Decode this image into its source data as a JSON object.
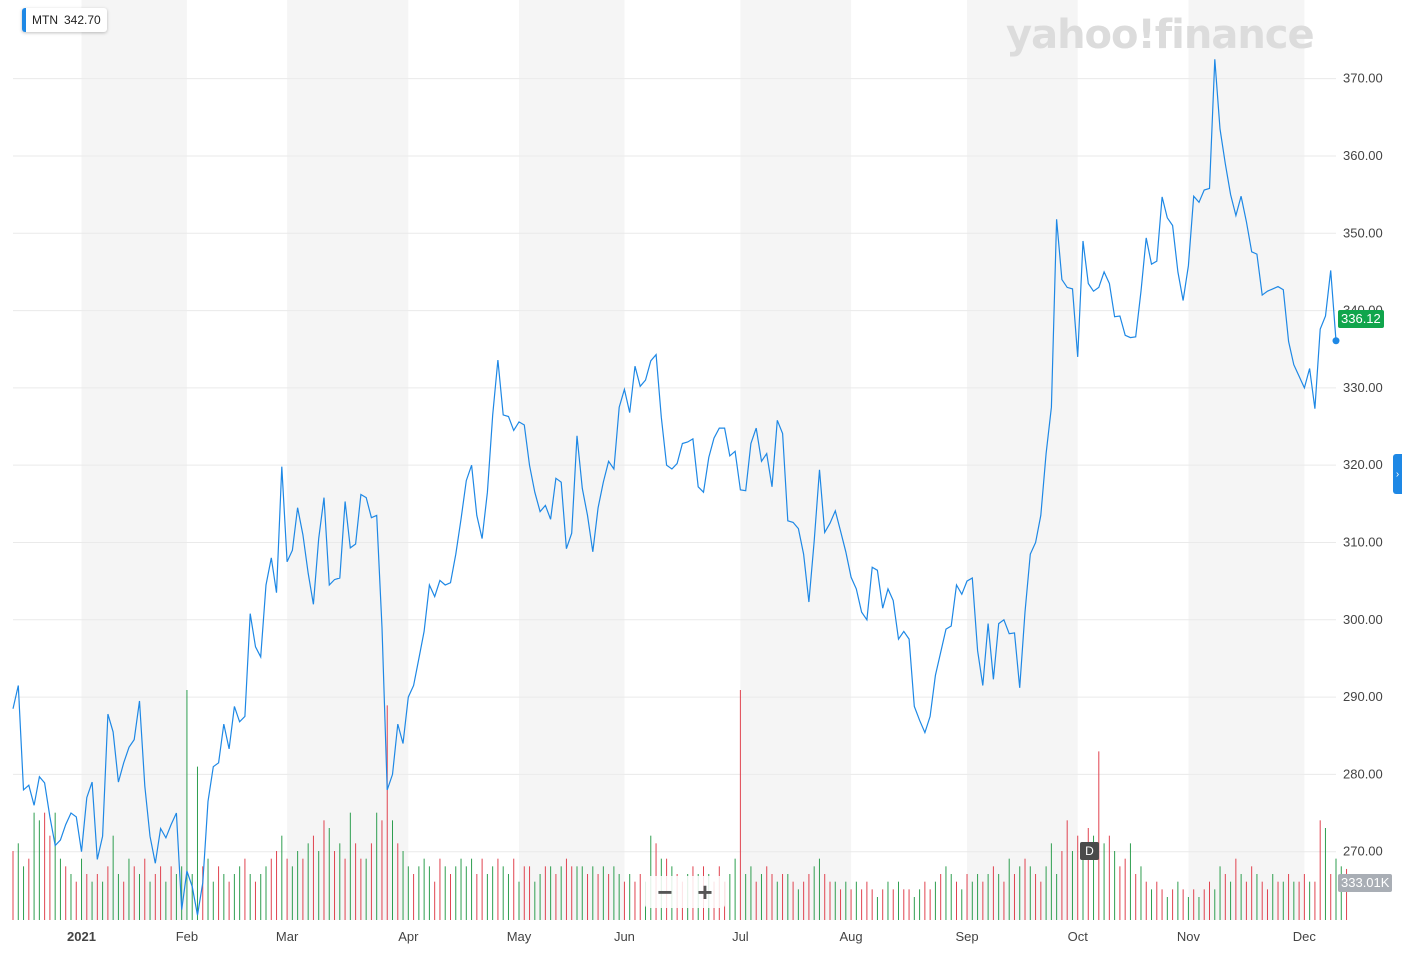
{
  "ticker": {
    "symbol": "MTN",
    "price": "342.70"
  },
  "watermark": "yahoo!finance",
  "current_price_label": "336.12",
  "volume_label": "333.01K",
  "zoom": {
    "minus": "−",
    "plus": "+"
  },
  "d_marker": "D",
  "colors": {
    "line": "#1e88e5",
    "up_volume": "#2e9e4f",
    "down_volume": "#e0434f",
    "band": "#f5f5f5",
    "price_badge": "#10a54c",
    "volume_badge": "#a9aeb5"
  },
  "chart_data": {
    "type": "line",
    "ylim": [
      260,
      375
    ],
    "yticks": [
      270,
      280,
      290,
      300,
      310,
      320,
      330,
      340,
      350,
      360,
      370
    ],
    "ytick_labels": [
      "270.00",
      "280.00",
      "290.00",
      "300.00",
      "310.00",
      "320.00",
      "330.00",
      "340.00",
      "350.00",
      "360.00",
      "370.00"
    ],
    "months": [
      {
        "label": "2021",
        "index": 13
      },
      {
        "label": "Feb",
        "index": 33
      },
      {
        "label": "Mar",
        "index": 52
      },
      {
        "label": "Apr",
        "index": 75
      },
      {
        "label": "May",
        "index": 96
      },
      {
        "label": "Jun",
        "index": 116
      },
      {
        "label": "Jul",
        "index": 138
      },
      {
        "label": "Aug",
        "index": 159
      },
      {
        "label": "Sep",
        "index": 181
      },
      {
        "label": "Oct",
        "index": 202
      },
      {
        "label": "Nov",
        "index": 223
      },
      {
        "label": "Dec",
        "index": 245
      }
    ],
    "series": [
      {
        "values": [
          288.5,
          291.5,
          278,
          278.6,
          276,
          279.7,
          278.9,
          274.5,
          270.8,
          271.5,
          273.5,
          275,
          274.5,
          270,
          277,
          279,
          269,
          272,
          287.8,
          285.5,
          279,
          281.5,
          283.5,
          284.5,
          289.5,
          278.5,
          272,
          268.5,
          273,
          271.8,
          273.5,
          275,
          262.5,
          267.5,
          265.5,
          261.8,
          266,
          276.5,
          281,
          281.5,
          286.5,
          283.3,
          288.8,
          286.8,
          287.5,
          300.8,
          296.5,
          295.2,
          304.5,
          308,
          303.5,
          319.8,
          307.5,
          309,
          314.5,
          311,
          306,
          302,
          310.5,
          315.8,
          304.5,
          305.2,
          305.4,
          315.3,
          309.3,
          309.8,
          316.2,
          315.8,
          313.2,
          313.5,
          299,
          278,
          280,
          286.5,
          284,
          290,
          291.5,
          295,
          298.5,
          304.5,
          303,
          305.1,
          304.5,
          304.8,
          308.5,
          313,
          318,
          320,
          313.5,
          310.5,
          316.5,
          326.5,
          333.6,
          326.5,
          326.3,
          324.5,
          325.6,
          325.2,
          320,
          316.5,
          314,
          314.8,
          313,
          318.3,
          317.8,
          309.2,
          311.2,
          323.8,
          317,
          313.5,
          308.8,
          314.5,
          317.8,
          320.5,
          319.5,
          327.5,
          329.8,
          326.8,
          332.8,
          330.2,
          331,
          333.5,
          334.3,
          326.2,
          320,
          319.5,
          320.2,
          322.8,
          323,
          323.4,
          317.2,
          316.5,
          321,
          323.5,
          324.8,
          324.8,
          321.2,
          321.8,
          316.8,
          316.7,
          322.8,
          324.8,
          320.5,
          321.5,
          317.2,
          325.8,
          324.1,
          312.8,
          312.6,
          311.8,
          308.5,
          302.3,
          310.2,
          319.4,
          311.3,
          312.5,
          314.1,
          311.5,
          308.8,
          305.5,
          304,
          301,
          300,
          306.8,
          306.4,
          301.5,
          304,
          302.5,
          297.5,
          298.5,
          297.5,
          288.8,
          287,
          285.4,
          287.5,
          292.8,
          295.8,
          298.8,
          299.2,
          304.5,
          303.3,
          305,
          305.4,
          296,
          291.5,
          299.5,
          292.3,
          299.5,
          300,
          298.2,
          298.3,
          291.2,
          301,
          308.5,
          310,
          313.5,
          321.5,
          327.5,
          351.8,
          344,
          343,
          342.8,
          334,
          349,
          343.5,
          342.5,
          343,
          345,
          343.5,
          339.2,
          339.3,
          336.8,
          336.5,
          336.6,
          342.5,
          349.4,
          346,
          346.4,
          354.7,
          352,
          351,
          345,
          341.3,
          345.8,
          354.8,
          354,
          355.6,
          355.8,
          372.5,
          363.5,
          359,
          355,
          352.3,
          354.8,
          351.5,
          347.6,
          347.3,
          342,
          342.5,
          342.8,
          343.1,
          342.7,
          336,
          333,
          331.5,
          330,
          332.5,
          327.3,
          337.6,
          339.3,
          345.2,
          336.1
        ]
      }
    ],
    "volume": {
      "ylim": [
        0,
        2000000
      ],
      "values": [
        450000,
        500000,
        350000,
        400000,
        700000,
        650000,
        700000,
        550000,
        700000,
        400000,
        350000,
        300000,
        250000,
        400000,
        300000,
        250000,
        300000,
        250000,
        350000,
        550000,
        300000,
        250000,
        400000,
        350000,
        300000,
        400000,
        250000,
        300000,
        350000,
        250000,
        350000,
        300000,
        350000,
        1500000,
        300000,
        1000000,
        350000,
        400000,
        250000,
        350000,
        300000,
        250000,
        300000,
        350000,
        400000,
        300000,
        250000,
        300000,
        350000,
        400000,
        450000,
        550000,
        400000,
        350000,
        450000,
        400000,
        500000,
        550000,
        450000,
        650000,
        600000,
        450000,
        500000,
        400000,
        700000,
        500000,
        400000,
        400000,
        500000,
        700000,
        650000,
        1400000,
        650000,
        500000,
        450000,
        350000,
        300000,
        350000,
        400000,
        350000,
        250000,
        400000,
        350000,
        300000,
        350000,
        400000,
        350000,
        400000,
        300000,
        400000,
        300000,
        350000,
        400000,
        350000,
        300000,
        400000,
        250000,
        350000,
        350000,
        250000,
        300000,
        350000,
        350000,
        300000,
        350000,
        400000,
        350000,
        350000,
        350000,
        300000,
        350000,
        300000,
        350000,
        300000,
        350000,
        300000,
        250000,
        300000,
        250000,
        300000,
        250000,
        550000,
        500000,
        400000,
        400000,
        350000,
        300000,
        250000,
        300000,
        350000,
        300000,
        350000,
        300000,
        250000,
        350000,
        250000,
        300000,
        400000,
        1500000,
        300000,
        350000,
        250000,
        300000,
        350000,
        300000,
        250000,
        300000,
        300000,
        250000,
        200000,
        250000,
        300000,
        350000,
        400000,
        300000,
        250000,
        250000,
        200000,
        250000,
        200000,
        250000,
        200000,
        250000,
        200000,
        150000,
        200000,
        250000,
        200000,
        250000,
        200000,
        200000,
        150000,
        200000,
        250000,
        200000,
        250000,
        300000,
        350000,
        300000,
        250000,
        200000,
        300000,
        250000,
        300000,
        250000,
        300000,
        350000,
        300000,
        250000,
        400000,
        300000,
        350000,
        400000,
        350000,
        300000,
        250000,
        350000,
        500000,
        300000,
        450000,
        650000,
        450000,
        550000,
        450000,
        600000,
        550000,
        1100000,
        500000,
        550000,
        450000,
        350000,
        400000,
        500000,
        300000,
        350000,
        250000,
        200000,
        250000,
        200000,
        150000,
        200000,
        250000,
        200000,
        150000,
        200000,
        150000,
        200000,
        250000,
        200000,
        350000,
        300000,
        250000,
        400000,
        300000,
        250000,
        350000,
        300000,
        250000,
        200000,
        300000,
        250000,
        250000,
        300000,
        250000,
        250000,
        300000,
        250000,
        250000,
        650000,
        600000,
        300000,
        400000,
        350000,
        333010
      ],
      "up": [
        false,
        true,
        true,
        false,
        true,
        true,
        false,
        false,
        true,
        true,
        false,
        true,
        false,
        true,
        false,
        true,
        false,
        true,
        false,
        true,
        true,
        false,
        true,
        false,
        true,
        false,
        true,
        false,
        false,
        true,
        false,
        true,
        true,
        true,
        true,
        true,
        false,
        true,
        true,
        false,
        true,
        false,
        true,
        true,
        false,
        true,
        false,
        true,
        true,
        false,
        false,
        true,
        false,
        true,
        true,
        false,
        true,
        false,
        true,
        false,
        true,
        false,
        true,
        false,
        true,
        false,
        false,
        true,
        false,
        true,
        false,
        false,
        true,
        false,
        true,
        true,
        false,
        true,
        true,
        true,
        false,
        false,
        true,
        false,
        true,
        true,
        true,
        true,
        false,
        false,
        true,
        true,
        false,
        true,
        true,
        false,
        true,
        false,
        false,
        true,
        true,
        false,
        true,
        false,
        true,
        false,
        false,
        true,
        true,
        false,
        true,
        false,
        true,
        false,
        true,
        true,
        false,
        true,
        false,
        false,
        true,
        true,
        false,
        true,
        false,
        true,
        false,
        false,
        true,
        false,
        true,
        false,
        true,
        false,
        false,
        false,
        true,
        true,
        false,
        true,
        true,
        false,
        true,
        false,
        false,
        true,
        false,
        true,
        false,
        true,
        false,
        false,
        true,
        true,
        false,
        false,
        true,
        false,
        true,
        false,
        true,
        false,
        false,
        false,
        true,
        false,
        true,
        false,
        true,
        false,
        false,
        true,
        true,
        false,
        false,
        true,
        false,
        true,
        true,
        false,
        true,
        false,
        true,
        true,
        false,
        true,
        false,
        true,
        false,
        true,
        false,
        true,
        false,
        true,
        false,
        false,
        true,
        true,
        true,
        false,
        false,
        true,
        false,
        true,
        false,
        true,
        false,
        true,
        false,
        true,
        false,
        false,
        true,
        false,
        true,
        false,
        true,
        false,
        false,
        true,
        false,
        true,
        false,
        true,
        false,
        true,
        false,
        false,
        true,
        true,
        false,
        true,
        false,
        true,
        false,
        false,
        true,
        false,
        false,
        true,
        false,
        true,
        false,
        true,
        false,
        false,
        true,
        false,
        false,
        true,
        false,
        true,
        true,
        false
      ]
    }
  }
}
